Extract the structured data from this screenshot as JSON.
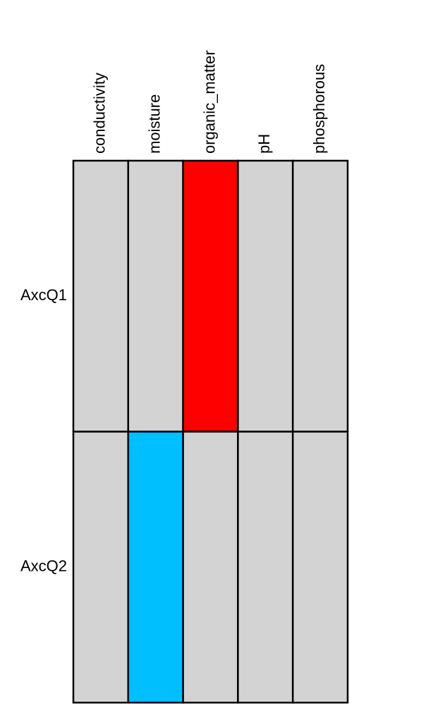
{
  "chart_data": {
    "type": "heatmap",
    "rows": [
      "AxcQ1",
      "AxcQ2"
    ],
    "columns": [
      "conductivity",
      "moisture",
      "organic_matter",
      "pH",
      "phosphorous"
    ],
    "colors": [
      [
        "#d3d3d3",
        "#d3d3d3",
        "#ff0000",
        "#d3d3d3",
        "#d3d3d3"
      ],
      [
        "#d3d3d3",
        "#00bfff",
        "#d3d3d3",
        "#d3d3d3",
        "#d3d3d3"
      ]
    ]
  }
}
